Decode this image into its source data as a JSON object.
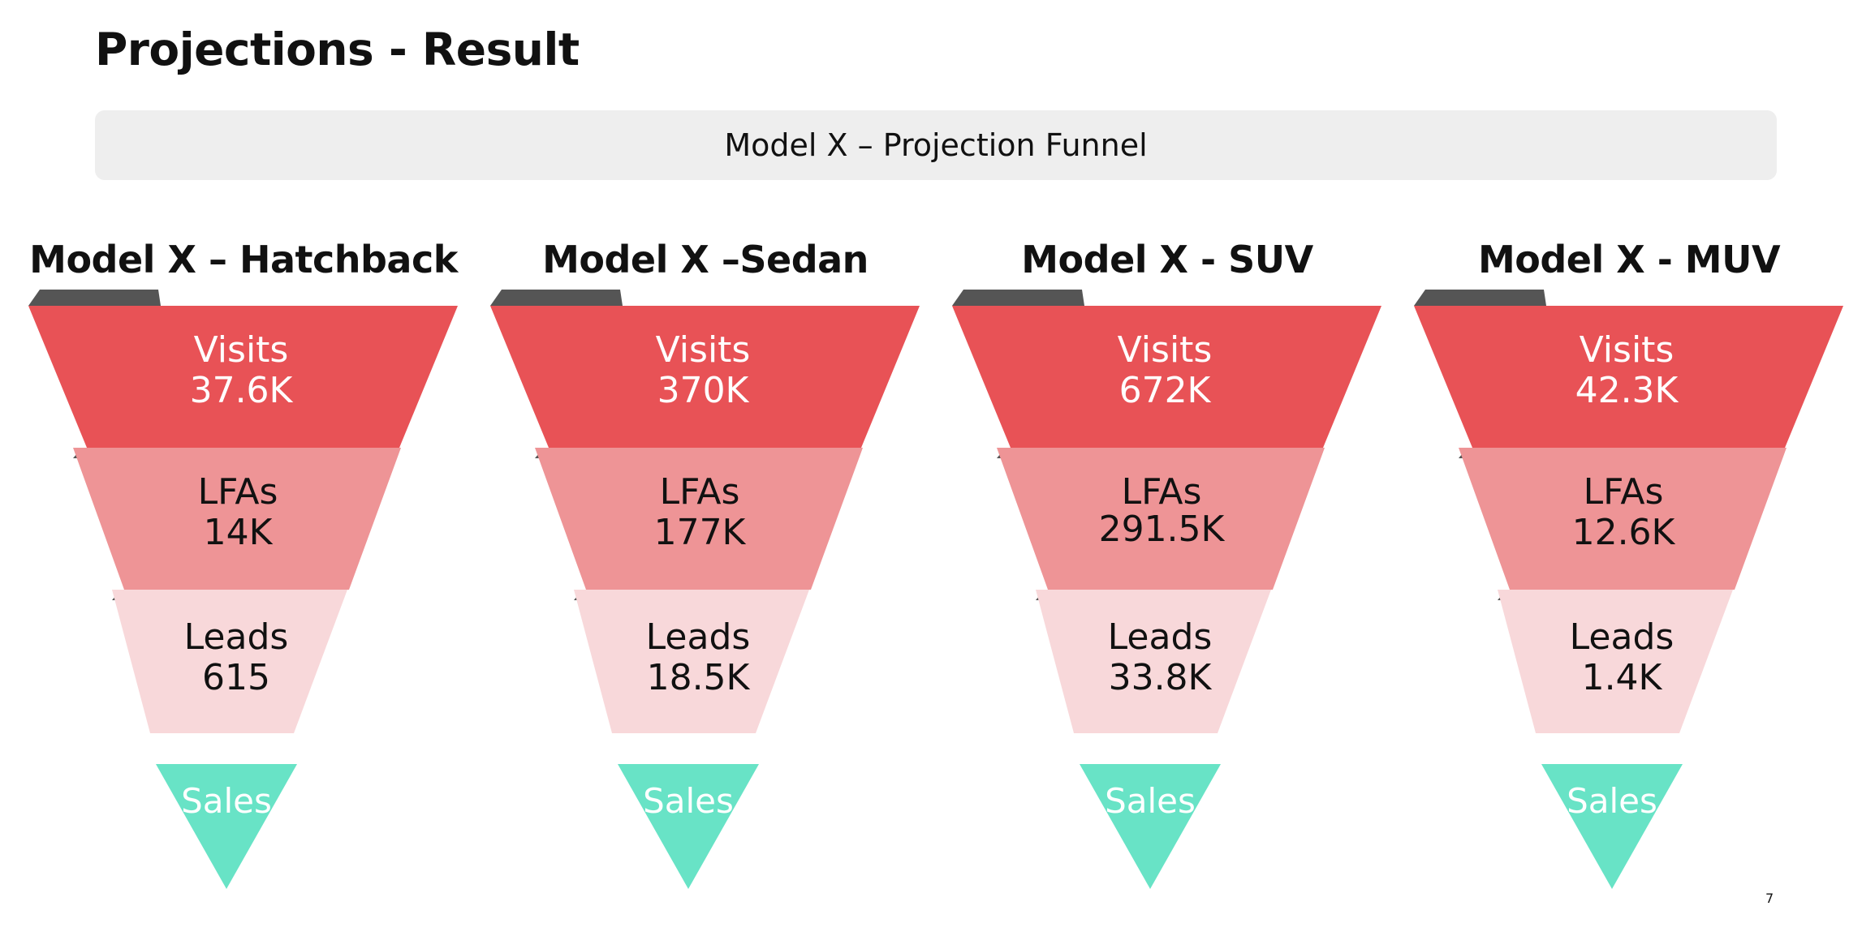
{
  "slide": {
    "title": "Projections - Result",
    "banner": "Model X – Projection Funnel",
    "page_number": "7"
  },
  "colors": {
    "visits": "#e85256",
    "lfas": "#ee9496",
    "leads": "#f8d8da",
    "sales": "#68e3c6",
    "shadow": "#555555"
  },
  "icons": [
    "funnel-shadow-tab"
  ],
  "funnels": [
    {
      "heading": "Model X – Hatchback",
      "visits": {
        "label": "Visits",
        "value": "37.6K"
      },
      "lfas": {
        "label": "LFAs",
        "value": "14K"
      },
      "leads": {
        "label": "Leads",
        "value": "615"
      },
      "sales": {
        "label": "Sales"
      }
    },
    {
      "heading": "Model X –Sedan",
      "visits": {
        "label": "Visits",
        "value": "370K"
      },
      "lfas": {
        "label": "LFAs",
        "value": "177K"
      },
      "leads": {
        "label": "Leads",
        "value": "18.5K"
      },
      "sales": {
        "label": "Sales"
      }
    },
    {
      "heading": "Model X - SUV",
      "visits": {
        "label": "Visits",
        "value": "672K"
      },
      "lfas": {
        "label": "LFAs",
        "value": "291.5K"
      },
      "leads": {
        "label": "Leads",
        "value": "33.8K"
      },
      "sales": {
        "label": "Sales"
      }
    },
    {
      "heading": "Model X - MUV",
      "visits": {
        "label": "Visits",
        "value": "42.3K"
      },
      "lfas": {
        "label": "LFAs",
        "value": "12.6K"
      },
      "leads": {
        "label": "Leads",
        "value": "1.4K"
      },
      "sales": {
        "label": "Sales"
      }
    }
  ]
}
